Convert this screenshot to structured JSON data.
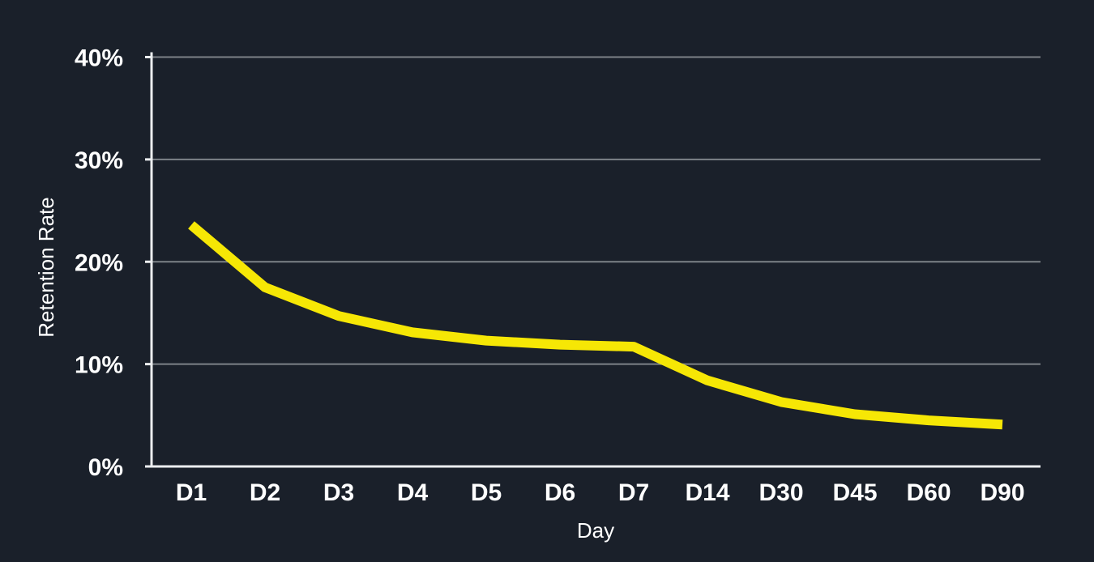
{
  "chart_data": {
    "type": "line",
    "title": "",
    "xlabel": "Day",
    "ylabel": "Retention Rate",
    "categories": [
      "D1",
      "D2",
      "D3",
      "D4",
      "D5",
      "D6",
      "D7",
      "D14",
      "D30",
      "D45",
      "D60",
      "D90"
    ],
    "series": [
      {
        "name": "Retention Rate",
        "values": [
          23.6,
          17.5,
          14.7,
          13.1,
          12.3,
          11.9,
          11.7,
          8.4,
          6.3,
          5.1,
          4.5,
          4.1
        ]
      }
    ],
    "ylim": [
      0,
      40
    ],
    "yticks": [
      0,
      10,
      20,
      30,
      40
    ],
    "ytick_labels": [
      "0%",
      "10%",
      "20%",
      "30%",
      "40%"
    ],
    "grid": true,
    "legend": false,
    "colors": {
      "line": "#f6e705",
      "background": "#1a202a",
      "text": "#ffffff",
      "grid": "#7d8288",
      "axis": "#eceef0"
    }
  }
}
